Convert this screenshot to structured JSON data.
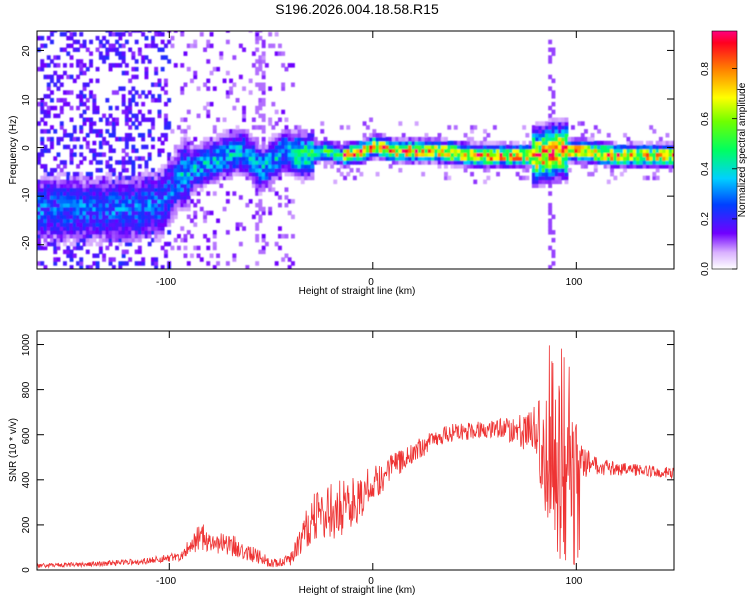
{
  "chart_data": [
    {
      "type": "heatmap",
      "title": "S196.2026.004.18.58.R15",
      "xlabel": "Height of straight line (km)",
      "ylabel": "Frequency (Hz)",
      "xlim": [
        -165,
        148
      ],
      "ylim": [
        -25,
        24
      ],
      "xticks": [
        -100,
        0,
        100
      ],
      "xtick_labels": [
        "-100",
        "0",
        "100"
      ],
      "yticks": [
        -20,
        -10,
        0,
        10,
        20
      ],
      "ytick_labels": [
        "-20",
        "-10",
        "0",
        "10",
        "20"
      ],
      "colorbar": {
        "label": "Normalized spectral amplitude",
        "range": [
          0.0,
          0.95
        ],
        "ticks": [
          0.0,
          0.2,
          0.4,
          0.6,
          0.8
        ],
        "tick_labels": [
          "0.0",
          "0.2",
          "0.4",
          "0.6",
          "0.8"
        ]
      },
      "ridge": {
        "x": [
          -135,
          -120,
          -105,
          -95,
          -80,
          -65,
          -55,
          -45,
          -35,
          -25,
          -15,
          -5,
          0,
          10,
          30,
          50,
          70,
          80,
          90,
          100,
          120,
          145
        ],
        "y": [
          -13,
          -13,
          -12,
          -6,
          -3,
          -1,
          -5,
          -1,
          -2,
          -1,
          -2,
          -1,
          0,
          -1,
          -1,
          -2,
          -2,
          -2,
          -1,
          -1,
          -2,
          -2
        ]
      }
    },
    {
      "type": "line",
      "xlabel": "Height of straight line (km)",
      "ylabel": "SNR (10 * v/v)",
      "xlim": [
        -165,
        148
      ],
      "ylim": [
        0,
        1060
      ],
      "xticks": [
        -100,
        0,
        100
      ],
      "xtick_labels": [
        "-100",
        "0",
        "100"
      ],
      "yticks": [
        0,
        200,
        400,
        600,
        800,
        1000
      ],
      "ytick_labels": [
        "0",
        "200",
        "400",
        "600",
        "800",
        "1000"
      ],
      "series": [
        {
          "name": "SNR",
          "color": "#ee3333",
          "envelope_x": [
            -165,
            -140,
            -110,
            -95,
            -85,
            -75,
            -65,
            -50,
            -40,
            -30,
            -20,
            -10,
            0,
            10,
            20,
            30,
            40,
            50,
            60,
            70,
            80,
            85,
            88,
            92,
            95,
            98,
            102,
            110,
            120,
            135,
            148
          ],
          "envelope_y": [
            20,
            25,
            40,
            60,
            150,
            120,
            100,
            30,
            50,
            230,
            260,
            300,
            380,
            460,
            520,
            580,
            610,
            620,
            630,
            620,
            610,
            500,
            450,
            500,
            450,
            500,
            480,
            460,
            450,
            440,
            430
          ],
          "noise_y": [
            10,
            10,
            15,
            20,
            60,
            50,
            50,
            20,
            30,
            110,
            130,
            120,
            80,
            60,
            50,
            40,
            40,
            40,
            40,
            60,
            120,
            300,
            330,
            330,
            300,
            250,
            80,
            40,
            30,
            25,
            25
          ]
        }
      ]
    }
  ]
}
